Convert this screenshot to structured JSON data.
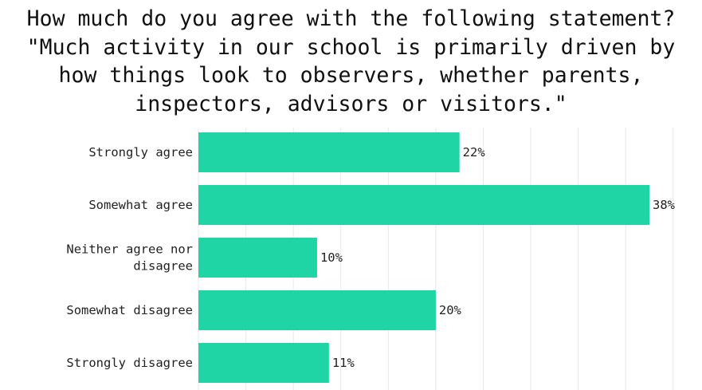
{
  "chart_data": {
    "type": "bar",
    "orientation": "horizontal",
    "title": "How much do you agree with the following statement?\n\"Much activity in our school is primarily driven by\nhow things look to observers, whether parents,\ninspectors, advisors or visitors.\"",
    "categories": [
      "Strongly agree",
      "Somewhat agree",
      "Neither agree nor disagree",
      "Somewhat disagree",
      "Strongly disagree"
    ],
    "category_lines": [
      [
        "Strongly agree"
      ],
      [
        "Somewhat agree"
      ],
      [
        "Neither agree nor",
        "disagree"
      ],
      [
        "Somewhat disagree"
      ],
      [
        "Strongly disagree"
      ]
    ],
    "values": [
      22,
      38,
      10,
      20,
      11
    ],
    "value_labels": [
      "22%",
      "38%",
      "10%",
      "20%",
      "11%"
    ],
    "xlim": [
      0,
      40
    ],
    "grid": true,
    "bar_color": "#1fd5a5",
    "grid_color": "#e8e8e8"
  }
}
